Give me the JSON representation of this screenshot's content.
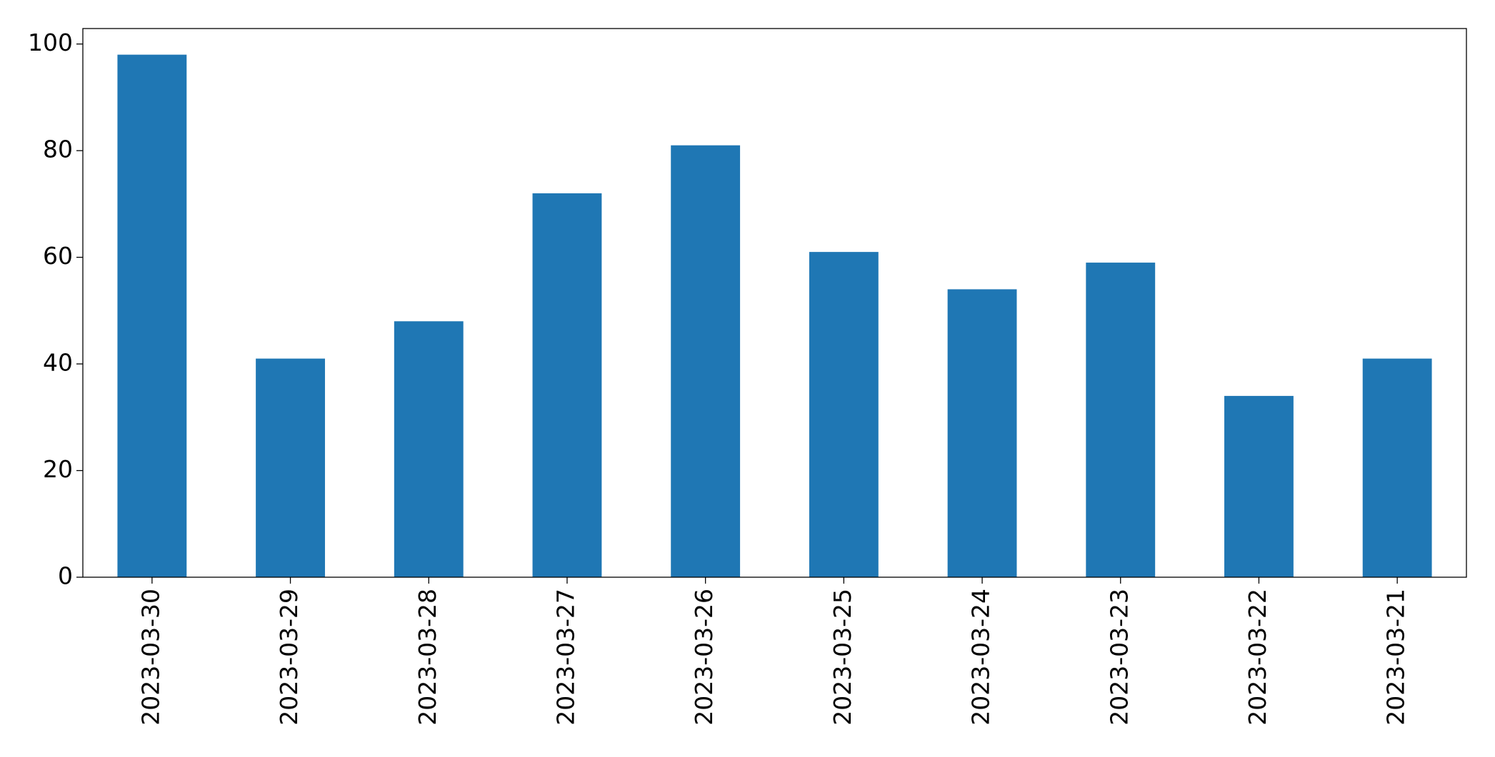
{
  "chart_data": {
    "type": "bar",
    "categories": [
      "2023-03-30",
      "2023-03-29",
      "2023-03-28",
      "2023-03-27",
      "2023-03-26",
      "2023-03-25",
      "2023-03-24",
      "2023-03-23",
      "2023-03-22",
      "2023-03-21"
    ],
    "values": [
      98,
      41,
      48,
      72,
      81,
      61,
      54,
      59,
      34,
      41
    ],
    "color": "#1f77b4",
    "ylim": [
      0,
      102.9
    ],
    "yticks": [
      0,
      20,
      40,
      60,
      80,
      100
    ],
    "grid": false
  }
}
